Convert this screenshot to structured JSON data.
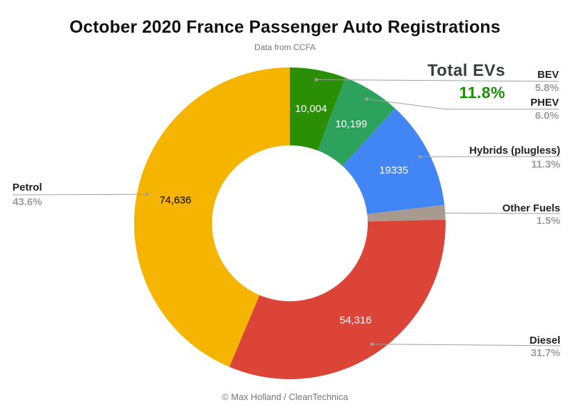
{
  "colors": {
    "background": "#ffffff",
    "title_text": "#111111",
    "muted_text": "#757575",
    "callout_name": "#212121",
    "callout_pct": "#9e9e9e",
    "leader_line": "#9e9e9e",
    "total_evs_green": "#1e8e0b"
  },
  "chart_data": {
    "type": "pie",
    "subtype": "donut",
    "hole_ratio": 0.5,
    "title": "October 2020 France Passenger Auto Registrations",
    "subtitle": "Data from CCFA",
    "footer": "© Max Holland / CleanTechnica",
    "legend_position": "none",
    "label_style": "outside callout labels with gray leader lines and dots; raw counts printed inside slices",
    "rotation": "starts at 12 o'clock, clockwise",
    "annotation": {
      "label": "Total EVs",
      "value": "11.8%"
    },
    "series": [
      {
        "label": "BEV",
        "pct": 5.8,
        "value": 10004,
        "value_label": "10,004",
        "color": "#2b8f06",
        "value_text_color": "#ffffff"
      },
      {
        "label": "PHEV",
        "pct": 6.0,
        "value": 10199,
        "value_label": "10,199",
        "color": "#2da25c",
        "value_text_color": "#ffffff"
      },
      {
        "label": "Hybrids (plugless)",
        "pct": 11.3,
        "value": 19335,
        "value_label": "19335",
        "color": "#4285f4",
        "value_text_color": "#ffffff"
      },
      {
        "label": "Other Fuels",
        "pct": 1.5,
        "value_label": "",
        "color": "#a89a8f",
        "value_text_color": "#ffffff"
      },
      {
        "label": "Diesel",
        "pct": 31.7,
        "value": 54316,
        "value_label": "54,316",
        "color": "#db4437",
        "value_text_color": "#ffffff"
      },
      {
        "label": "Petrol",
        "pct": 43.6,
        "value": 74636,
        "value_label": "74,636",
        "color": "#000000",
        "value_text_color": "#000000"
      }
    ]
  }
}
